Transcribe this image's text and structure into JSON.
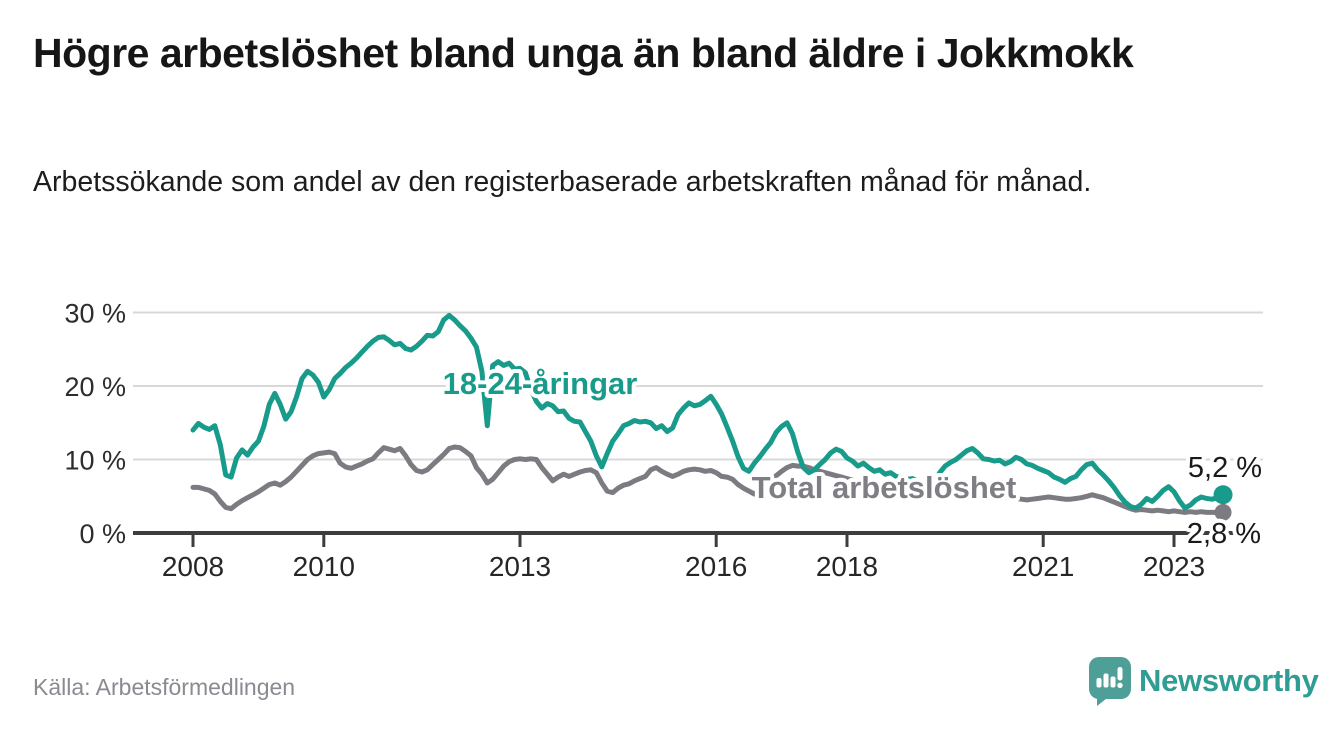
{
  "header": {
    "title": "Högre arbetslöshet bland unga än bland äldre i Jokkmokk",
    "subtitle": "Arbetssökande som andel av den registerbaserade arbetskraften månad för månad."
  },
  "footer": {
    "source": "Källa: Arbetsförmedlingen",
    "brand": "Newsworthy"
  },
  "colors": {
    "young_line": "#189b8b",
    "total_line": "#7b7b81",
    "total_label_text": "#7e7e85",
    "value_label_text": "#1a1a1a",
    "gridline": "#d8d8d8",
    "axis": "#3d3d3d",
    "tick_label": "#262626",
    "logo_icon": "#4f9f99",
    "logo_text": "#2f9d93"
  },
  "chart_data": {
    "type": "line",
    "x_start_year": 2008,
    "points_per_year": 12,
    "xlim": [
      2007.1,
      2024.35
    ],
    "ylim": [
      0,
      30
    ],
    "grid": "horizontal",
    "legend_position": "inline-labels",
    "y_ticks": [
      {
        "value": 0,
        "label": "0 %"
      },
      {
        "value": 10,
        "label": "10 %"
      },
      {
        "value": 20,
        "label": "20 %"
      },
      {
        "value": 30,
        "label": "30 %"
      }
    ],
    "x_ticks": [
      {
        "value": 2008,
        "label": "2008"
      },
      {
        "value": 2010,
        "label": "2010"
      },
      {
        "value": 2013,
        "label": "2013"
      },
      {
        "value": 2016,
        "label": "2016"
      },
      {
        "value": 2018,
        "label": "2018"
      },
      {
        "value": 2021,
        "label": "2021"
      },
      {
        "value": 2023,
        "label": "2023"
      }
    ],
    "series": [
      {
        "name": "18-24-åringar",
        "color": "#189b8b",
        "end_label": "5,2 %",
        "values": [
          14.0,
          14.9,
          14.4,
          14.1,
          14.6,
          12.0,
          7.9,
          7.6,
          10.2,
          11.3,
          10.6,
          11.7,
          12.5,
          14.5,
          17.5,
          19.0,
          17.5,
          15.5,
          16.5,
          18.5,
          21.0,
          22.0,
          21.5,
          20.5,
          18.5,
          19.5,
          21.0,
          21.7,
          22.5,
          23.1,
          23.8,
          24.6,
          25.4,
          26.1,
          26.6,
          26.7,
          26.2,
          25.6,
          25.8,
          25.1,
          24.9,
          25.4,
          26.1,
          26.9,
          26.8,
          27.4,
          29.0,
          29.6,
          29.0,
          28.2,
          27.5,
          26.5,
          25.3,
          22.0,
          14.6,
          22.8,
          23.3,
          22.8,
          23.1,
          22.3,
          22.4,
          21.8,
          19.5,
          17.9,
          17.0,
          17.6,
          17.3,
          16.5,
          16.6,
          15.6,
          15.2,
          15.1,
          13.8,
          12.5,
          10.5,
          9.0,
          10.8,
          12.5,
          13.5,
          14.6,
          14.9,
          15.3,
          15.1,
          15.2,
          15.0,
          14.2,
          14.6,
          13.8,
          14.3,
          16.1,
          17.0,
          17.7,
          17.3,
          17.5,
          18.0,
          18.6,
          17.5,
          16.2,
          14.4,
          12.5,
          10.4,
          8.8,
          8.4,
          9.5,
          10.4,
          11.4,
          12.3,
          13.7,
          14.5,
          15.0,
          13.5,
          10.9,
          8.9,
          8.2,
          8.6,
          9.3,
          10.0,
          10.9,
          11.4,
          11.1,
          10.2,
          9.8,
          9.1,
          9.5,
          8.9,
          8.4,
          8.6,
          8.0,
          8.2,
          7.7,
          7.5,
          7.3,
          7.4,
          7.1,
          6.8,
          6.5,
          7.0,
          8.2,
          9.1,
          9.6,
          10.0,
          10.6,
          11.2,
          11.5,
          10.9,
          10.1,
          10.0,
          9.8,
          9.9,
          9.4,
          9.7,
          10.3,
          10.0,
          9.4,
          9.2,
          8.8,
          8.5,
          8.2,
          7.6,
          7.3,
          6.9,
          7.4,
          7.7,
          8.6,
          9.3,
          9.5,
          8.6,
          7.9,
          7.1,
          6.2,
          5.1,
          4.2,
          3.6,
          3.4,
          3.9,
          4.7,
          4.3,
          5.0,
          5.8,
          6.3,
          5.6,
          4.4,
          3.4,
          3.8,
          4.5,
          4.9,
          4.7,
          4.6,
          4.8,
          5.2
        ]
      },
      {
        "name": "Total arbetslöshet",
        "color": "#7b7b81",
        "end_label": "2,8 %",
        "values": [
          6.2,
          6.2,
          6.0,
          5.8,
          5.3,
          4.3,
          3.5,
          3.3,
          3.9,
          4.4,
          4.8,
          5.2,
          5.6,
          6.1,
          6.6,
          6.8,
          6.5,
          7.0,
          7.6,
          8.4,
          9.2,
          10.0,
          10.5,
          10.8,
          10.9,
          11.0,
          10.8,
          9.5,
          9.0,
          8.8,
          9.1,
          9.4,
          9.8,
          10.1,
          10.9,
          11.6,
          11.4,
          11.2,
          11.5,
          10.5,
          9.3,
          8.5,
          8.3,
          8.6,
          9.3,
          10.0,
          10.7,
          11.5,
          11.7,
          11.6,
          11.1,
          10.5,
          8.9,
          8.0,
          6.8,
          7.3,
          8.2,
          9.1,
          9.7,
          10.0,
          10.1,
          10.0,
          10.1,
          10.0,
          8.9,
          8.0,
          7.1,
          7.6,
          8.0,
          7.7,
          8.0,
          8.3,
          8.5,
          8.6,
          8.2,
          6.8,
          5.7,
          5.5,
          6.1,
          6.5,
          6.7,
          7.1,
          7.4,
          7.7,
          8.6,
          8.9,
          8.4,
          8.0,
          7.7,
          8.0,
          8.4,
          8.6,
          8.7,
          8.6,
          8.4,
          8.5,
          8.2,
          7.7,
          7.6,
          7.3,
          6.6,
          6.1,
          5.7,
          5.3,
          5.7,
          6.4,
          7.1,
          7.8,
          8.4,
          8.9,
          9.2,
          9.1,
          9.1,
          8.9,
          8.6,
          8.4,
          8.2,
          8.0,
          7.8,
          7.6,
          7.4,
          7.2,
          7.0,
          6.8,
          6.5,
          6.3,
          6.1,
          6.2,
          6.3,
          6.2,
          6.1,
          6.2,
          6.1,
          6.0,
          5.9,
          5.8,
          5.8,
          5.9,
          6.1,
          6.1,
          6.2,
          6.1,
          6.0,
          5.9,
          5.9,
          5.7,
          5.5,
          5.2,
          5.0,
          4.9,
          4.8,
          4.7,
          4.6,
          4.5,
          4.6,
          4.7,
          4.8,
          4.9,
          4.8,
          4.7,
          4.6,
          4.6,
          4.7,
          4.8,
          5.0,
          5.2,
          5.0,
          4.8,
          4.5,
          4.2,
          3.9,
          3.6,
          3.3,
          3.1,
          3.2,
          3.1,
          3.0,
          3.1,
          3.0,
          2.9,
          3.0,
          2.9,
          2.8,
          2.9,
          2.8,
          2.9,
          2.8,
          2.8,
          2.8,
          2.8
        ]
      }
    ]
  }
}
